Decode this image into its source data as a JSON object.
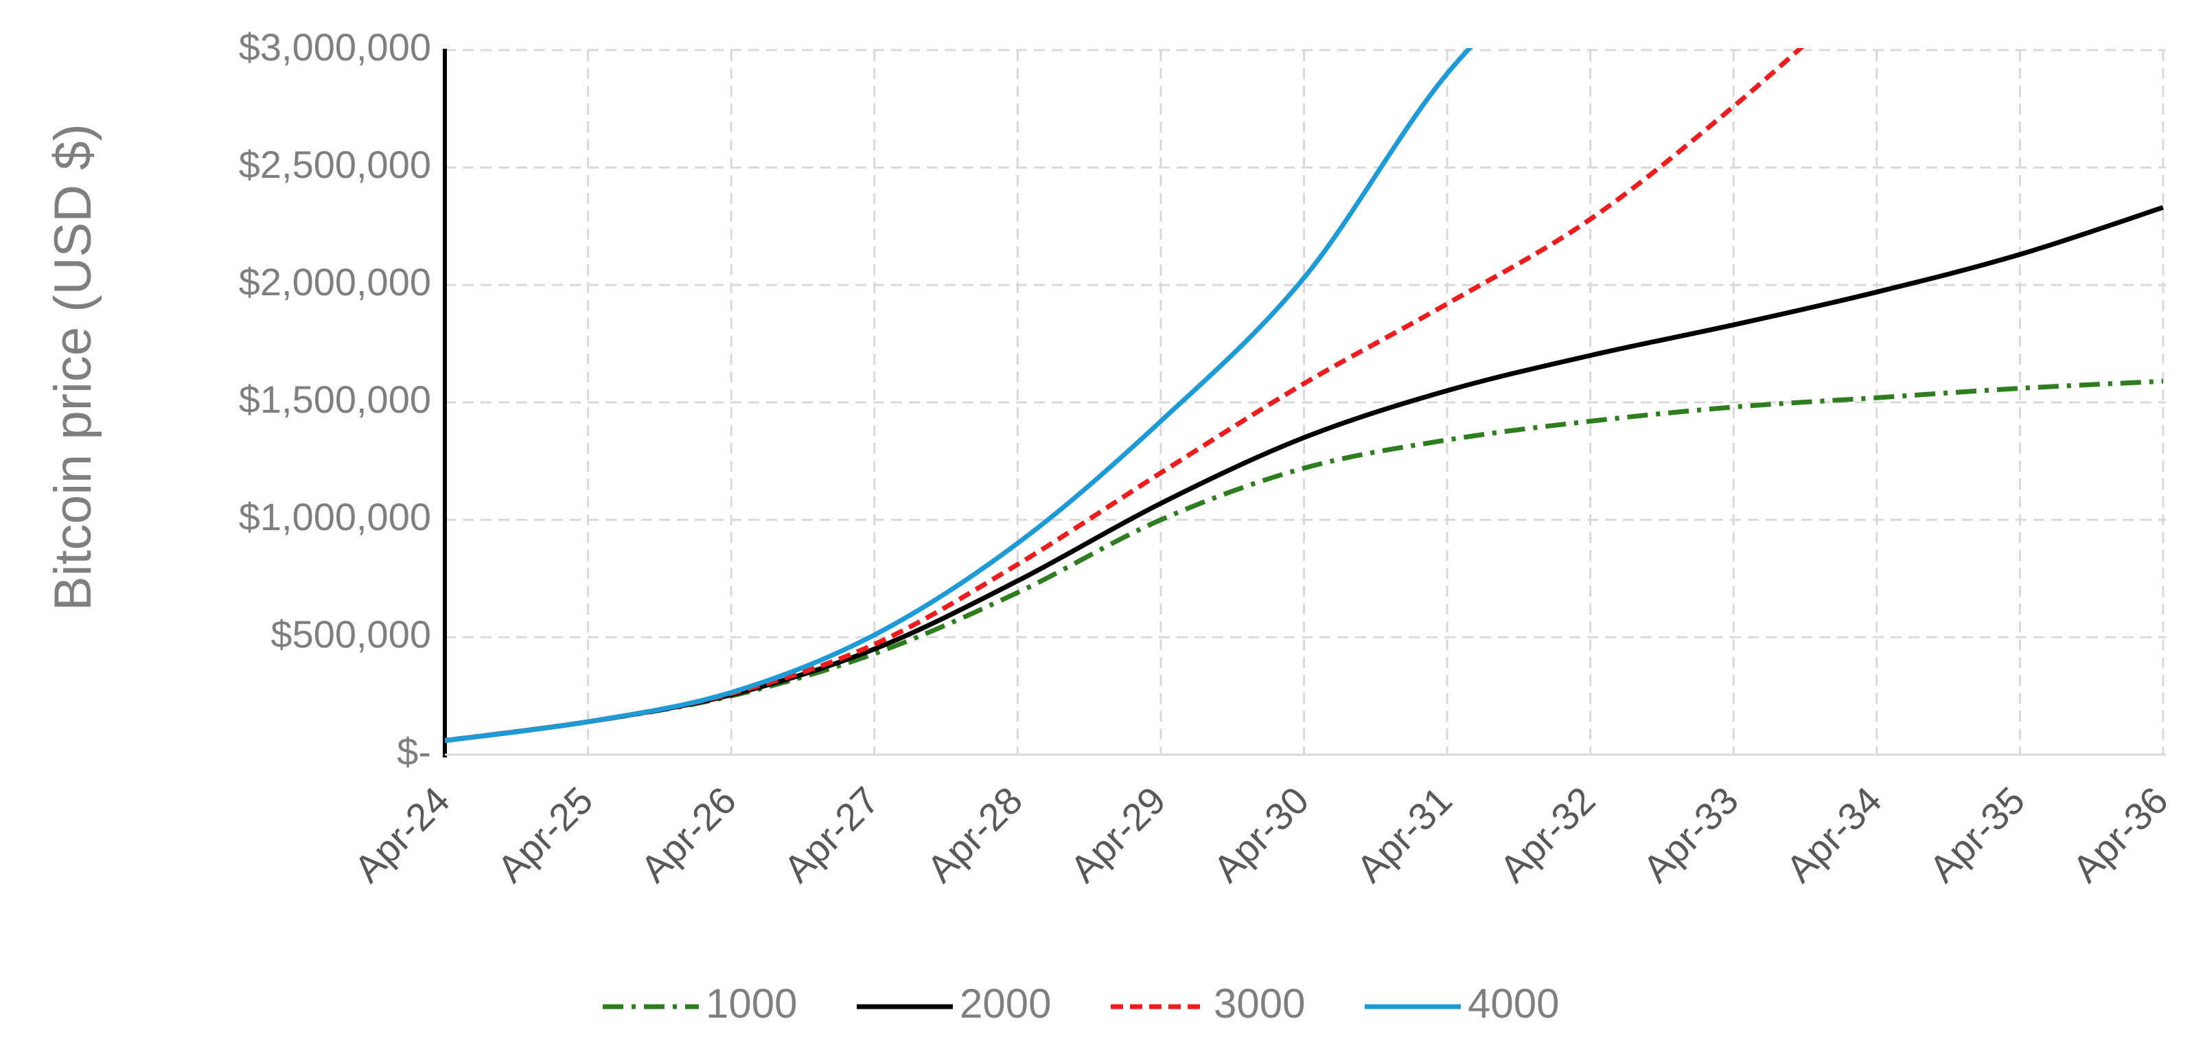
{
  "chart_data": {
    "type": "line",
    "title": "",
    "ylabel": "Bitcoin price (USD $)",
    "xlabel": "",
    "x": [
      "Apr-24",
      "Apr-25",
      "Apr-26",
      "Apr-27",
      "Apr-28",
      "Apr-29",
      "Apr-30",
      "Apr-31",
      "Apr-32",
      "Apr-33",
      "Apr-34",
      "Apr-35",
      "Apr-36"
    ],
    "y_ticks": [
      0,
      500000,
      1000000,
      1500000,
      2000000,
      2500000,
      3000000
    ],
    "y_tick_labels": [
      "$-",
      "$500,000",
      "$1,000,000",
      "$1,500,000",
      "$2,000,000",
      "$2,500,000",
      "$3,000,000"
    ],
    "ylim": [
      0,
      3000000
    ],
    "grid": true,
    "legend_position": "bottom",
    "series": [
      {
        "name": "1000",
        "color": "#2e7d1f",
        "dash": "dashdot",
        "values": [
          60000,
          140000,
          250000,
          430000,
          690000,
          1000000,
          1220000,
          1340000,
          1420000,
          1480000,
          1520000,
          1560000,
          1590000
        ]
      },
      {
        "name": "2000",
        "color": "#000000",
        "dash": "solid",
        "values": [
          60000,
          140000,
          255000,
          450000,
          740000,
          1070000,
          1350000,
          1550000,
          1700000,
          1830000,
          1970000,
          2130000,
          2330000
        ]
      },
      {
        "name": "3000",
        "color": "#ee1c1c",
        "dash": "dashed",
        "values": [
          60000,
          140000,
          260000,
          470000,
          810000,
          1200000,
          1580000,
          1920000,
          2280000,
          2760000,
          3300000,
          null,
          null
        ]
      },
      {
        "name": "4000",
        "color": "#1e9bd7",
        "dash": "solid",
        "values": [
          60000,
          140000,
          265000,
          510000,
          900000,
          1420000,
          2030000,
          2900000,
          3500000,
          null,
          null,
          null,
          null
        ]
      }
    ]
  }
}
